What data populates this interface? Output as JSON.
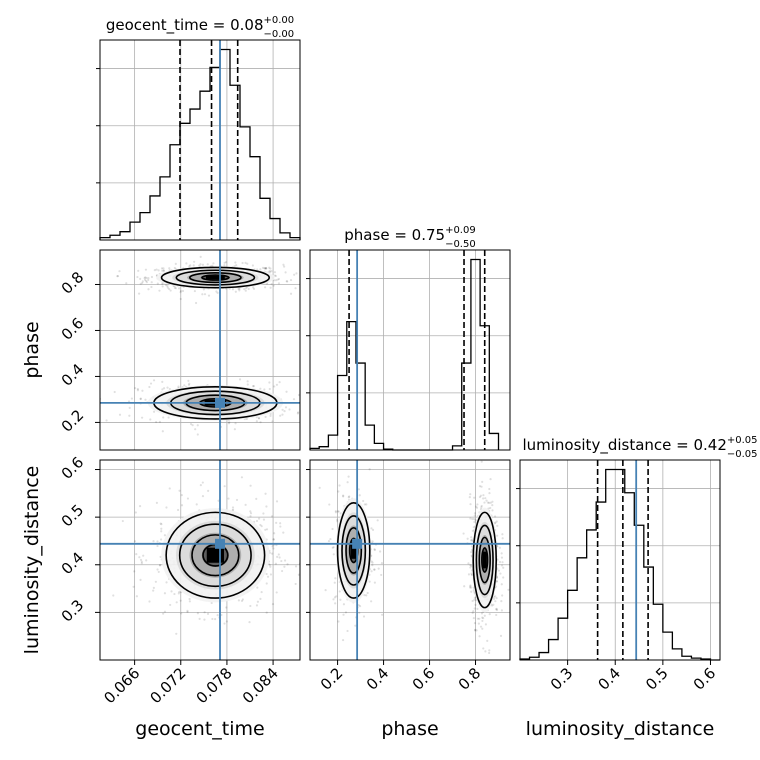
{
  "chart_data": {
    "type": "corner",
    "parameters": [
      "geocent_time",
      "phase",
      "luminosity_distance"
    ],
    "truths": {
      "geocent_time": 0.0771,
      "phase": 0.285,
      "luminosity_distance": 0.444
    },
    "titles": [
      {
        "param": "geocent_time",
        "text": "geocent_time = 0.08",
        "sup": "+0.00",
        "sub": "−0.00"
      },
      {
        "param": "phase",
        "text": "phase = 0.75",
        "sup": "+0.09",
        "sub": "−0.50"
      },
      {
        "param": "luminosity_distance",
        "text": "luminosity_distance = 0.42",
        "sup": "+0.05",
        "sub": "−0.05"
      }
    ],
    "axis_labels": {
      "x": [
        "geocent_time",
        "phase",
        "luminosity_distance"
      ],
      "y": [
        "phase",
        "luminosity_distance"
      ]
    },
    "ranges": {
      "geocent_time": [
        0.0615,
        0.0875
      ],
      "phase": [
        0.08,
        0.95
      ],
      "luminosity_distance": [
        0.2,
        0.62
      ]
    },
    "ticks": {
      "geocent_time": [
        "0.066",
        "0.072",
        "0.078",
        "0.084"
      ],
      "phase": [
        "0.2",
        "0.4",
        "0.6",
        "0.8"
      ],
      "luminosity_distance": [
        "0.3",
        "0.4",
        "0.5",
        "0.6"
      ]
    },
    "quantiles": {
      "geocent_time": [
        0.0719,
        0.076,
        0.0794
      ],
      "phase": [
        0.25,
        0.75,
        0.84
      ],
      "luminosity_distance": [
        0.363,
        0.416,
        0.469
      ]
    },
    "histograms": {
      "geocent_time": {
        "edges": [
          0.0615,
          0.0628,
          0.0641,
          0.0654,
          0.0667,
          0.068,
          0.0693,
          0.0706,
          0.0719,
          0.0732,
          0.0745,
          0.0758,
          0.0771,
          0.0784,
          0.0797,
          0.081,
          0.0823,
          0.0836,
          0.0849,
          0.0862,
          0.0875
        ],
        "counts": [
          2,
          4,
          7,
          15,
          23,
          37,
          53,
          80,
          98,
          110,
          125,
          145,
          160,
          130,
          95,
          70,
          35,
          18,
          6,
          2
        ]
      },
      "phase": {
        "edges": [
          0.08,
          0.12,
          0.16,
          0.2,
          0.24,
          0.28,
          0.32,
          0.36,
          0.4,
          0.44,
          0.7,
          0.74,
          0.78,
          0.82,
          0.86,
          0.9
        ],
        "counts": [
          2,
          4,
          18,
          90,
          155,
          105,
          30,
          8,
          1,
          0,
          5,
          105,
          230,
          150,
          20
        ]
      },
      "luminosity_distance": {
        "edges": [
          0.2,
          0.22,
          0.24,
          0.26,
          0.28,
          0.3,
          0.32,
          0.34,
          0.36,
          0.38,
          0.4,
          0.42,
          0.44,
          0.46,
          0.48,
          0.5,
          0.52,
          0.54,
          0.56,
          0.58,
          0.6,
          0.62
        ],
        "counts": [
          1,
          3,
          8,
          22,
          45,
          75,
          110,
          140,
          170,
          205,
          205,
          180,
          145,
          100,
          60,
          30,
          12,
          4,
          2,
          1,
          0
        ]
      }
    },
    "density_modes": [
      {
        "x": "geocent_time",
        "y": "phase",
        "centers": [
          [
            0.0765,
            0.83,
            0.0035,
            0.022,
            1.0
          ],
          [
            0.0765,
            0.285,
            0.004,
            0.035,
            0.55
          ]
        ]
      },
      {
        "x": "geocent_time",
        "y": "luminosity_distance",
        "centers": [
          [
            0.0765,
            0.42,
            0.0032,
            0.045,
            1.0
          ]
        ]
      },
      {
        "x": "phase",
        "y": "luminosity_distance",
        "centers": [
          [
            0.27,
            0.43,
            0.035,
            0.05,
            0.55
          ],
          [
            0.84,
            0.41,
            0.025,
            0.05,
            1.0
          ]
        ]
      }
    ]
  }
}
